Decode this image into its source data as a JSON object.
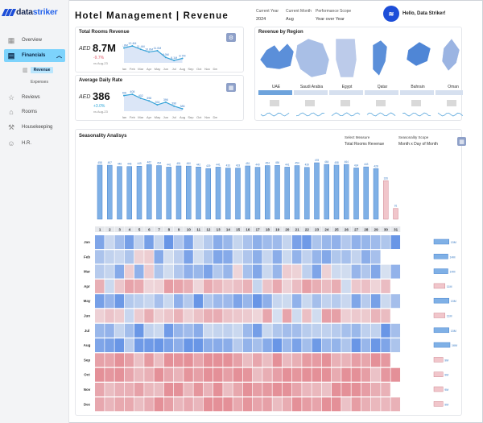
{
  "brand": {
    "left": "data",
    "right": "striker"
  },
  "title": "Hotel Management | Revenue",
  "filters": [
    {
      "label": "Current Year",
      "value": "2024"
    },
    {
      "label": "Current Month",
      "value": "Aug"
    },
    {
      "label": "Performance Scope",
      "value": "Year over Year"
    }
  ],
  "greeting": "Hello, Data Striker!",
  "sidebar": {
    "items": [
      {
        "label": "Overview",
        "icon": "grid-icon"
      },
      {
        "label": "Financials",
        "icon": "money-icon",
        "active": true
      },
      {
        "label": "Reviews",
        "icon": "star-icon"
      },
      {
        "label": "Rooms",
        "icon": "bed-icon"
      },
      {
        "label": "Housekeeping",
        "icon": "broom-icon"
      },
      {
        "label": "H.R.",
        "icon": "people-icon"
      }
    ],
    "subitems": [
      {
        "label": "Revenue",
        "active": true
      },
      {
        "label": "Expenses"
      }
    ]
  },
  "kpis": [
    {
      "title": "Total Rooms Revenue",
      "currency": "AED",
      "value": "8.7M",
      "change": "-9.7%",
      "compare": "vs Aug-23",
      "positive": false,
      "months": [
        "Jan",
        "Feb",
        "Mar",
        "Apr",
        "May",
        "Jun",
        "Jul",
        "Aug",
        "Sep",
        "Oct",
        "Nov",
        "Dec"
      ],
      "series": [
        11.8,
        12.4,
        11.4,
        10.6,
        11.0,
        9.0,
        8.1,
        8.7
      ],
      "labels": [
        "11.8M",
        "12.4M",
        "11.4M",
        "10.6M",
        "11.0M",
        "9.0M",
        "8.1M",
        "8.7M"
      ]
    },
    {
      "title": "Average Daily Rate",
      "currency": "AED",
      "value": "386",
      "change": "+3.0%",
      "compare": "vs Aug-23",
      "positive": true,
      "months": [
        "Jan",
        "Feb",
        "Mar",
        "Apr",
        "May",
        "Jun",
        "Jul",
        "Aug",
        "Sep",
        "Oct",
        "Nov",
        "Dec"
      ],
      "series": [
        406,
        408,
        402,
        398,
        392,
        396,
        390,
        386
      ],
      "labels": [
        "406",
        "408",
        "402",
        "398",
        "392",
        "396",
        "390",
        "386"
      ]
    }
  ],
  "region": {
    "title": "Revenue by Region",
    "regions": [
      "UAE",
      "Saudi Arabia",
      "Egypt",
      "Qatar",
      "Bahrain",
      "Oman"
    ],
    "colors": [
      "#5b8fd9",
      "#a9bfe6",
      "#bccbea",
      "#5b8fd9",
      "#4f86d6",
      "#9bb4e2"
    ]
  },
  "seasonality": {
    "title": "Seasonality Analisys",
    "measure_label": "Select Measure",
    "measure_value": "Total Rooms Revenue",
    "scope_label": "Seasonality Scope",
    "scope_value": "Month x Day of Month",
    "days": [
      "1",
      "2",
      "3",
      "4",
      "5",
      "6",
      "7",
      "8",
      "9",
      "10",
      "11",
      "12",
      "13",
      "14",
      "15",
      "16",
      "17",
      "18",
      "19",
      "20",
      "21",
      "22",
      "23",
      "24",
      "25",
      "26",
      "27",
      "28",
      "29",
      "30",
      "31"
    ],
    "months": [
      "Jan",
      "Feb",
      "Mar",
      "Apr",
      "May",
      "Jun",
      "Jul",
      "Aug",
      "Sep",
      "Oct",
      "Nov",
      "Dec"
    ],
    "day_totals": [
      458,
      457,
      446,
      446,
      449,
      462,
      454,
      441,
      451,
      450,
      442,
      429,
      441,
      433,
      433,
      451,
      440,
      454,
      456,
      441,
      454,
      439,
      478,
      464,
      458,
      464,
      434,
      443,
      428,
      326,
      91
    ],
    "month_totals": [
      "15M",
      "14M",
      "14M",
      "11M",
      "15M",
      "11M",
      "15M",
      "16M",
      "9M",
      "9M",
      "9M",
      "9M"
    ],
    "month_values": [
      15,
      14,
      14,
      11,
      15,
      11,
      15,
      16,
      9,
      9,
      9,
      9
    ]
  }
}
